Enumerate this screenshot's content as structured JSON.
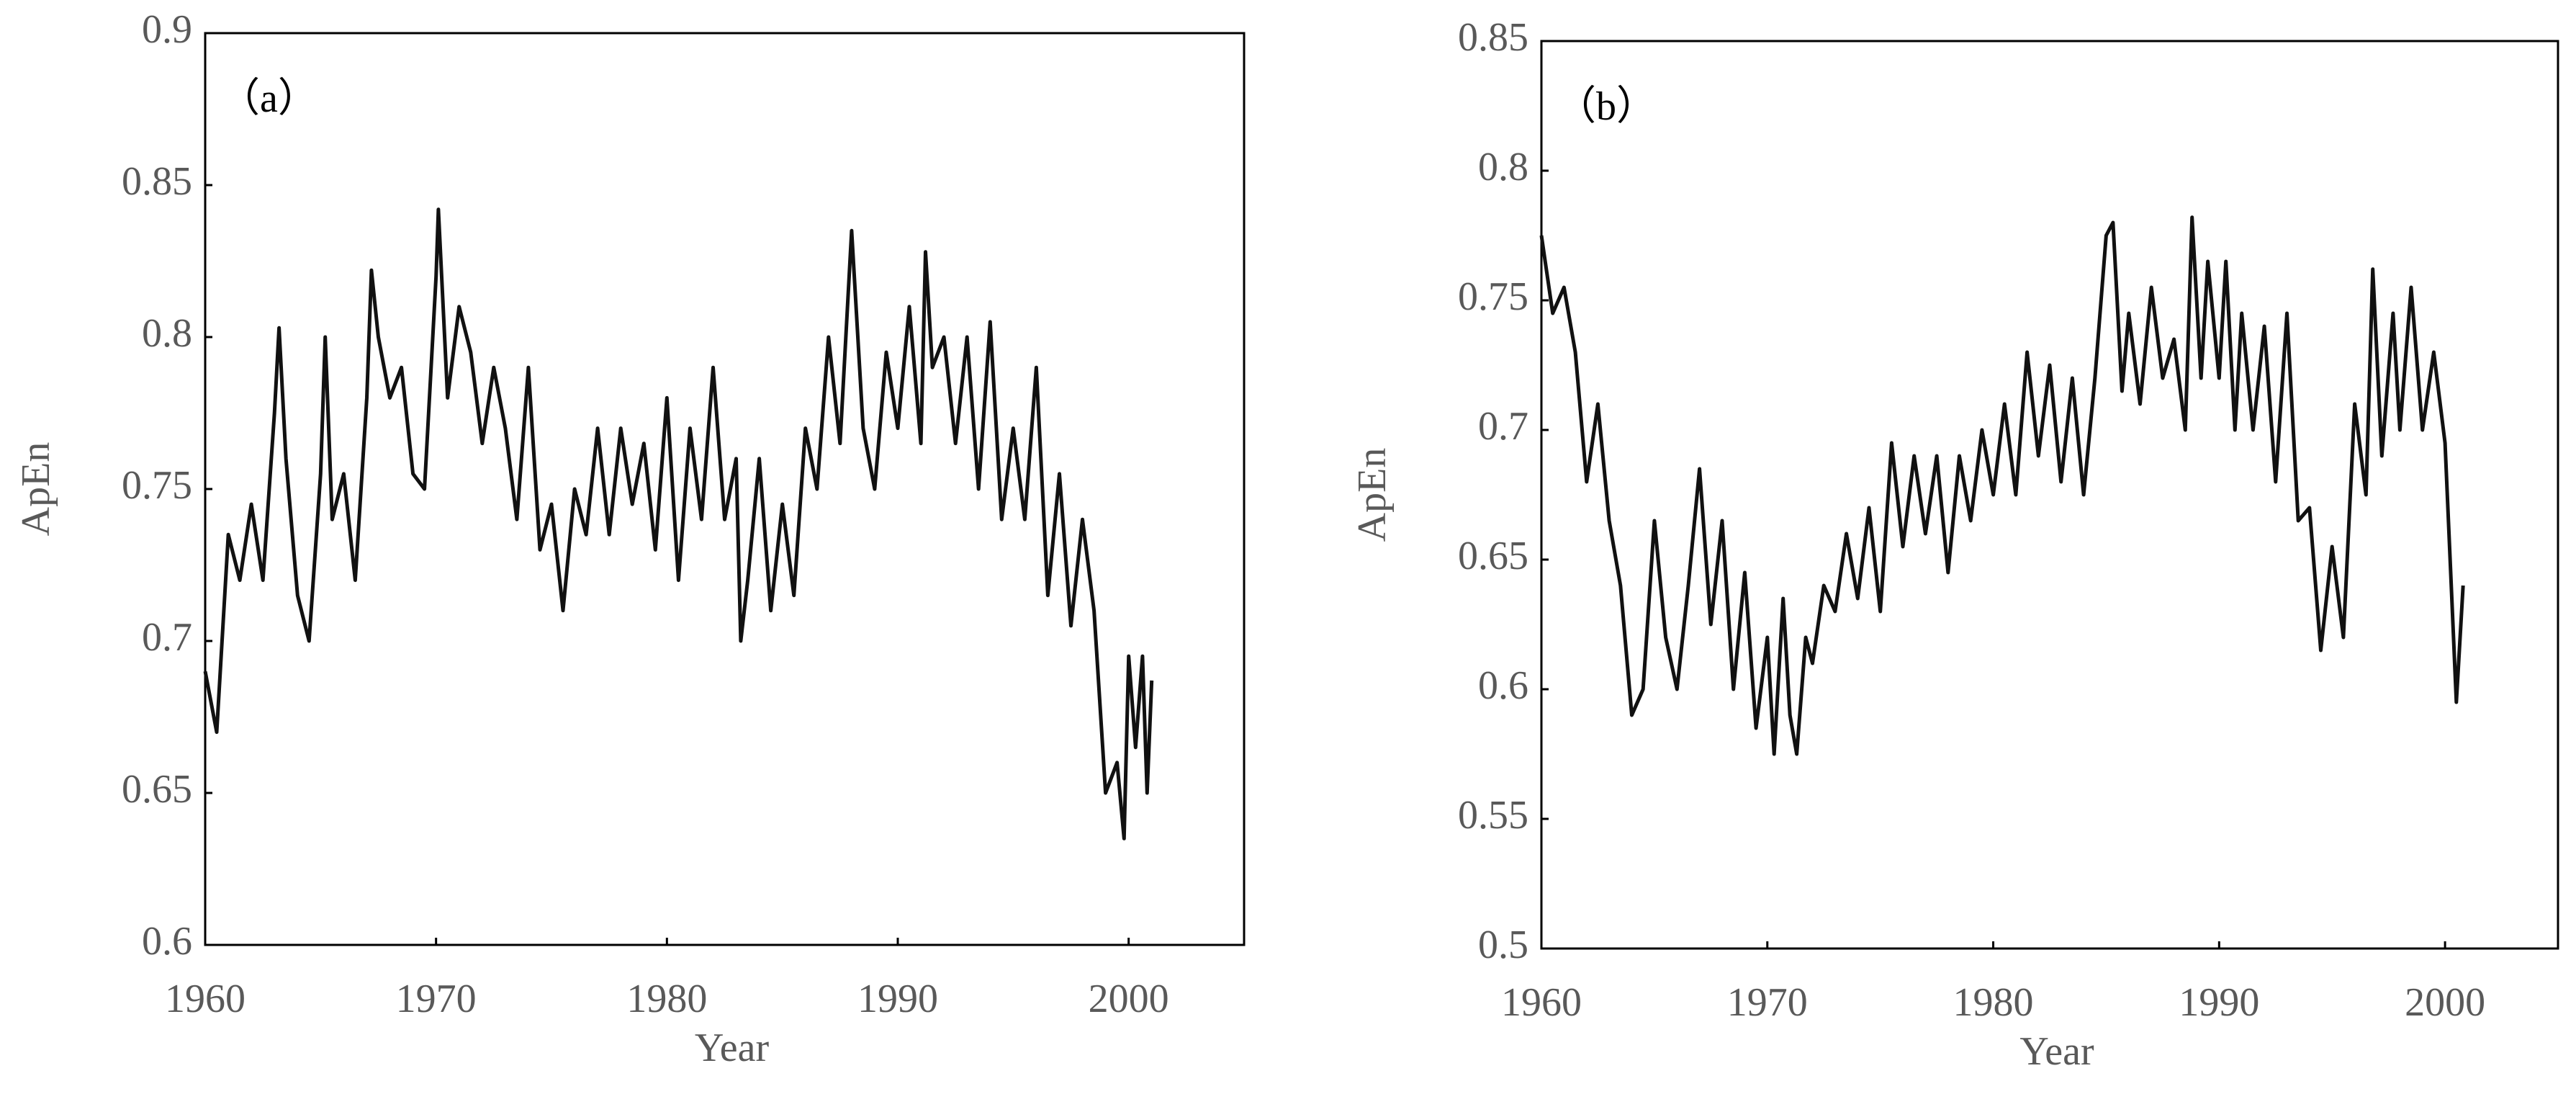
{
  "chart_data": [
    {
      "type": "line",
      "annotation": "（a）",
      "x_label": "Year",
      "y_label": "ApEn",
      "color": "#111111",
      "xlim": [
        1960,
        2005
      ],
      "xticks": [
        1960,
        1970,
        1980,
        1990,
        2000
      ],
      "ylim": [
        0.6,
        0.9
      ],
      "yticks": [
        0.6,
        0.65,
        0.7,
        0.75,
        0.8,
        0.85,
        0.9
      ],
      "x": [
        1960,
        1960.5,
        1961,
        1961.5,
        1962,
        1962.5,
        1963,
        1963.2,
        1963.5,
        1964,
        1964.5,
        1965,
        1965.2,
        1965.5,
        1966,
        1966.5,
        1967,
        1967.2,
        1967.5,
        1968,
        1968.5,
        1969,
        1969.5,
        1970,
        1970.1,
        1970.5,
        1971,
        1971.5,
        1972,
        1972.5,
        1973,
        1973.5,
        1974,
        1974.5,
        1975,
        1975.5,
        1976,
        1976.5,
        1977,
        1977.5,
        1978,
        1978.5,
        1979,
        1979.5,
        1980,
        1980.5,
        1981,
        1981.5,
        1982,
        1982.5,
        1983,
        1983.2,
        1983.5,
        1984,
        1984.5,
        1985,
        1985.5,
        1986,
        1986.5,
        1987,
        1987.5,
        1988,
        1988.5,
        1989,
        1989.5,
        1990,
        1990.5,
        1991,
        1991.2,
        1991.5,
        1992,
        1992.5,
        1993,
        1993.5,
        1994,
        1994.5,
        1995,
        1995.5,
        1996,
        1996.5,
        1997,
        1997.5,
        1998,
        1998.5,
        1999,
        1999.5,
        1999.8,
        2000,
        2000.3,
        2000.6,
        2000.8,
        2001
      ],
      "values": [
        0.69,
        0.67,
        0.735,
        0.72,
        0.745,
        0.72,
        0.775,
        0.803,
        0.76,
        0.715,
        0.7,
        0.755,
        0.8,
        0.74,
        0.755,
        0.72,
        0.78,
        0.822,
        0.8,
        0.78,
        0.79,
        0.755,
        0.75,
        0.82,
        0.842,
        0.78,
        0.81,
        0.795,
        0.765,
        0.79,
        0.77,
        0.74,
        0.79,
        0.73,
        0.745,
        0.71,
        0.75,
        0.735,
        0.77,
        0.735,
        0.77,
        0.745,
        0.765,
        0.73,
        0.78,
        0.72,
        0.77,
        0.74,
        0.79,
        0.74,
        0.76,
        0.7,
        0.72,
        0.76,
        0.71,
        0.745,
        0.715,
        0.77,
        0.75,
        0.8,
        0.765,
        0.835,
        0.77,
        0.75,
        0.795,
        0.77,
        0.81,
        0.765,
        0.828,
        0.79,
        0.8,
        0.765,
        0.8,
        0.75,
        0.805,
        0.74,
        0.77,
        0.74,
        0.79,
        0.715,
        0.755,
        0.705,
        0.74,
        0.71,
        0.65,
        0.66,
        0.635,
        0.695,
        0.665,
        0.695,
        0.65,
        0.687
      ]
    },
    {
      "type": "line",
      "annotation": "（b）",
      "x_label": "Year",
      "y_label": "ApEn",
      "color": "#111111",
      "xlim": [
        1960,
        2005
      ],
      "xticks": [
        1960,
        1970,
        1980,
        1990,
        2000
      ],
      "ylim": [
        0.5,
        0.85
      ],
      "yticks": [
        0.5,
        0.55,
        0.6,
        0.65,
        0.7,
        0.75,
        0.8,
        0.85
      ],
      "x": [
        1960,
        1960.5,
        1961,
        1961.5,
        1962,
        1962.5,
        1963,
        1963.5,
        1964,
        1964.5,
        1965,
        1965.5,
        1966,
        1966.5,
        1967,
        1967.5,
        1968,
        1968.5,
        1969,
        1969.5,
        1970,
        1970.3,
        1970.7,
        1971,
        1971.3,
        1971.7,
        1972,
        1972.5,
        1973,
        1973.5,
        1974,
        1974.5,
        1975,
        1975.5,
        1976,
        1976.5,
        1977,
        1977.5,
        1978,
        1978.5,
        1979,
        1979.5,
        1980,
        1980.5,
        1981,
        1981.5,
        1982,
        1982.5,
        1983,
        1983.5,
        1984,
        1984.5,
        1985,
        1985.3,
        1985.7,
        1986,
        1986.5,
        1987,
        1987.5,
        1988,
        1988.5,
        1988.8,
        1989.2,
        1989.5,
        1990,
        1990.3,
        1990.7,
        1991,
        1991.5,
        1992,
        1992.5,
        1993,
        1993.5,
        1994,
        1994.5,
        1995,
        1995.5,
        1996,
        1996.5,
        1996.8,
        1997.2,
        1997.7,
        1998,
        1998.5,
        1999,
        1999.5,
        2000,
        2000.5,
        2000.8
      ],
      "values": [
        0.775,
        0.745,
        0.755,
        0.73,
        0.68,
        0.71,
        0.665,
        0.64,
        0.59,
        0.6,
        0.665,
        0.62,
        0.6,
        0.64,
        0.685,
        0.625,
        0.665,
        0.6,
        0.645,
        0.585,
        0.62,
        0.575,
        0.635,
        0.59,
        0.575,
        0.62,
        0.61,
        0.64,
        0.63,
        0.66,
        0.635,
        0.67,
        0.63,
        0.695,
        0.655,
        0.69,
        0.66,
        0.69,
        0.645,
        0.69,
        0.665,
        0.7,
        0.675,
        0.71,
        0.675,
        0.73,
        0.69,
        0.725,
        0.68,
        0.72,
        0.675,
        0.72,
        0.775,
        0.78,
        0.715,
        0.745,
        0.71,
        0.755,
        0.72,
        0.735,
        0.7,
        0.782,
        0.72,
        0.765,
        0.72,
        0.765,
        0.7,
        0.745,
        0.7,
        0.74,
        0.68,
        0.745,
        0.665,
        0.67,
        0.615,
        0.655,
        0.62,
        0.71,
        0.675,
        0.762,
        0.69,
        0.745,
        0.7,
        0.755,
        0.7,
        0.73,
        0.695,
        0.595,
        0.64
      ]
    }
  ]
}
